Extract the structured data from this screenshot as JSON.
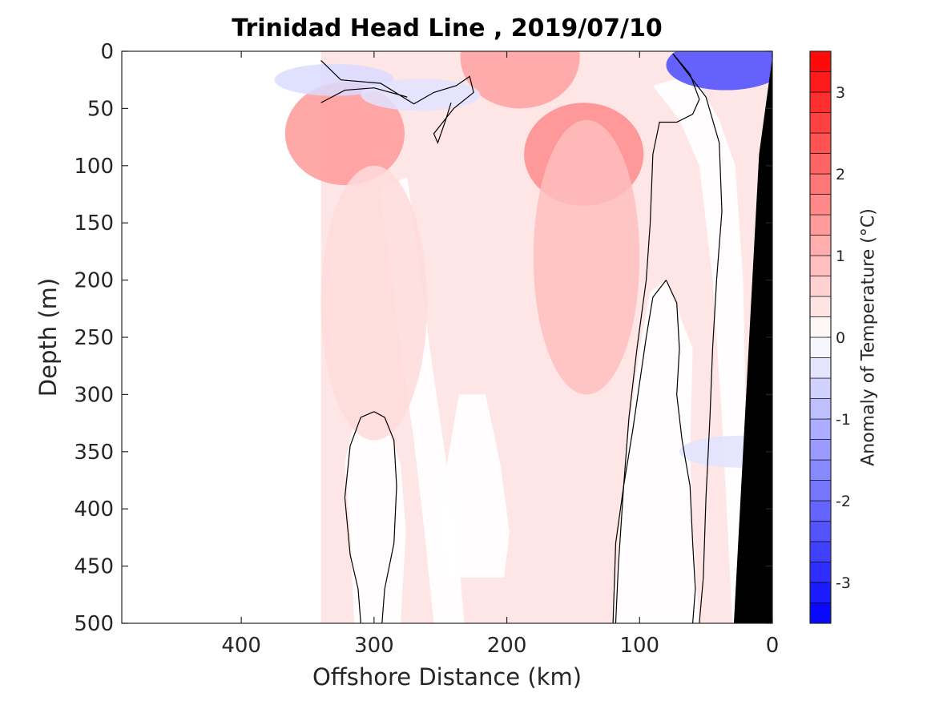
{
  "chart_data": {
    "type": "heatmap",
    "title": "Trinidad Head Line , 2019/07/10",
    "xlabel": "Offshore Distance (km)",
    "ylabel": "Depth (m)",
    "colorbar_label": "Anomaly of Temperature (°C)",
    "xlim": [
      490,
      0
    ],
    "ylim": [
      0,
      500
    ],
    "x_ticks": [
      400,
      300,
      200,
      100,
      0
    ],
    "y_ticks": [
      0,
      50,
      100,
      150,
      200,
      250,
      300,
      350,
      400,
      450,
      500
    ],
    "colorbar_ticks": [
      3,
      2,
      1,
      0,
      -1,
      -2,
      -3
    ],
    "colorbar_range": [
      -3.5,
      3.5
    ],
    "colorbar_step": 0.25,
    "colors": {
      "warm": "#ff0000",
      "cold": "#0000ff",
      "neutral": "#ffffff",
      "land": "#000000"
    },
    "data_extent_x": [
      340,
      0
    ],
    "contour_levels": [
      0
    ],
    "anomaly_features": [
      {
        "kind": "warm",
        "x": 142,
        "y": 90,
        "value": 1.6
      },
      {
        "kind": "warm",
        "x": 140,
        "y": 180,
        "value": 0.9
      },
      {
        "kind": "warm",
        "x": 322,
        "y": 72,
        "value": 1.4
      },
      {
        "kind": "warm",
        "x": 190,
        "y": 5,
        "value": 1.3
      },
      {
        "kind": "warm",
        "x": 300,
        "y": 220,
        "value": 0.5
      },
      {
        "kind": "cold",
        "x": 35,
        "y": 12,
        "value": -2.5
      },
      {
        "kind": "cold",
        "x": 25,
        "y": 350,
        "value": -0.4
      },
      {
        "kind": "cold",
        "x": 330,
        "y": 25,
        "value": -0.5
      },
      {
        "kind": "cold",
        "x": 265,
        "y": 38,
        "value": -0.4
      }
    ]
  }
}
